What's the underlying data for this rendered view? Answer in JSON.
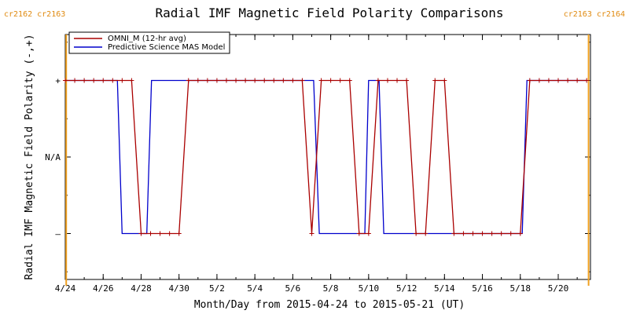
{
  "chart_data": {
    "type": "line",
    "title": "Radial IMF Magnetic Field Polarity Comparisons",
    "xlabel": "Month/Day from 2015-04-24 to 2015-05-21 (UT)",
    "ylabel": "Radial IMF Magnetic Field Polarity (-,+)",
    "x_range": [
      "2015-04-24",
      "2015-05-21"
    ],
    "xlim_days": [
      0,
      27.7
    ],
    "ylim": [
      -1.6,
      1.6
    ],
    "x_ticks": [
      {
        "day": 0,
        "label": "4/24"
      },
      {
        "day": 2,
        "label": "4/26"
      },
      {
        "day": 4,
        "label": "4/28"
      },
      {
        "day": 6,
        "label": "4/30"
      },
      {
        "day": 8,
        "label": "5/2"
      },
      {
        "day": 10,
        "label": "5/4"
      },
      {
        "day": 12,
        "label": "5/6"
      },
      {
        "day": 14,
        "label": "5/8"
      },
      {
        "day": 16,
        "label": "5/10"
      },
      {
        "day": 18,
        "label": "5/12"
      },
      {
        "day": 20,
        "label": "5/14"
      },
      {
        "day": 22,
        "label": "5/16"
      },
      {
        "day": 24,
        "label": "5/18"
      },
      {
        "day": 26,
        "label": "5/20"
      }
    ],
    "y_ticks": [
      {
        "value": 1,
        "label": "+"
      },
      {
        "value": 0,
        "label": "N/A"
      },
      {
        "value": -1,
        "label": "–"
      }
    ],
    "legend_placement": "top-left",
    "carrington_markers": [
      {
        "day": 0.05,
        "label": "cr2162 cr2163",
        "side": "left"
      },
      {
        "day": 27.6,
        "label": "cr2163 cr2164",
        "side": "right"
      }
    ],
    "series": [
      {
        "name": "OMNI_M (12-hr avg)",
        "color": "#aa0000",
        "markers": true,
        "x": [
          0,
          0.5,
          1,
          1.5,
          2,
          2.5,
          3,
          3.5,
          4,
          4.5,
          5,
          5.5,
          6,
          6.5,
          7,
          7.5,
          8,
          8.5,
          9,
          9.5,
          10,
          10.5,
          11,
          11.5,
          12,
          12.5,
          13,
          13.5,
          14,
          14.5,
          15,
          15.5,
          16,
          16.5,
          17,
          17.5,
          18,
          18.5,
          19,
          19.5,
          20,
          20.5,
          21,
          21.5,
          22,
          22.5,
          23,
          23.5,
          24,
          24.5,
          25,
          25.5,
          26,
          26.5,
          27,
          27.5
        ],
        "y": [
          1,
          1,
          1,
          1,
          1,
          1,
          1,
          1,
          -1,
          -1,
          -1,
          -1,
          -1,
          1,
          1,
          1,
          1,
          1,
          1,
          1,
          1,
          1,
          1,
          1,
          1,
          1,
          -1,
          1,
          1,
          1,
          1,
          -1,
          -1,
          1,
          1,
          1,
          1,
          -1,
          -1,
          1,
          1,
          -1,
          -1,
          -1,
          -1,
          -1,
          -1,
          -1,
          -1,
          1,
          1,
          1,
          1,
          1,
          1,
          1
        ]
      },
      {
        "name": "Predictive Science MAS Model",
        "color": "#0000cc",
        "markers": false,
        "x": [
          0,
          2.75,
          3.0,
          4.3,
          4.55,
          13.1,
          13.4,
          15.8,
          16.0,
          16.55,
          16.8,
          17.6,
          17.85,
          24.1,
          24.35,
          27.5
        ],
        "y": [
          1,
          1,
          -1,
          -1,
          1,
          1,
          -1,
          -1,
          1,
          1,
          -1,
          -1,
          -1,
          -1,
          1,
          1
        ]
      }
    ]
  }
}
